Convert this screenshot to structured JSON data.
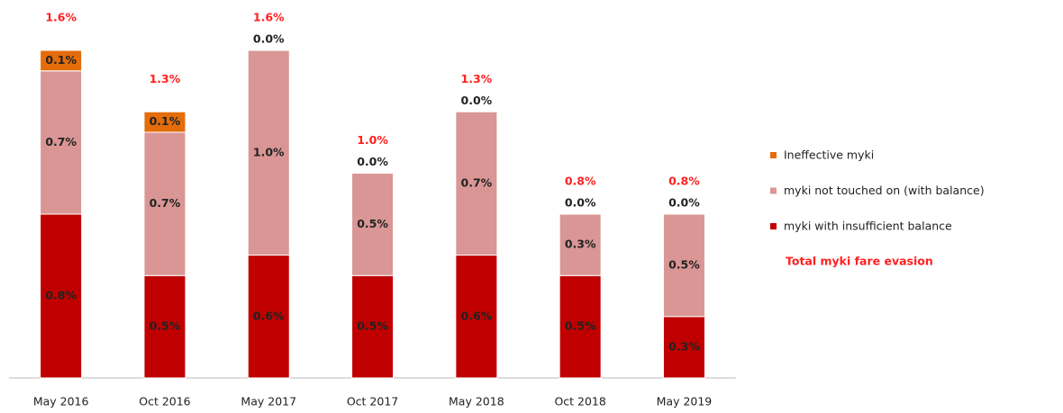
{
  "chart_data": {
    "type": "stacked_bar",
    "categories": [
      "May 2016",
      "Oct 2016",
      "May 2017",
      "Oct 2017",
      "May 2018",
      "Oct 2018",
      "May 2019"
    ],
    "series": [
      {
        "name": "Ineffective myki",
        "color": "#e46c0a",
        "values": [
          0.1,
          0.1,
          0.0,
          0.0,
          0.0,
          0.0,
          0.0
        ],
        "value_labels": [
          "0.1%",
          "0.1%",
          "0.0%",
          "0.0%",
          "0.0%",
          "0.0%",
          "0.0%"
        ]
      },
      {
        "name": "myki not touched on (with balance)",
        "color": "#d99694",
        "values": [
          0.7,
          0.7,
          1.0,
          0.5,
          0.7,
          0.3,
          0.5
        ],
        "value_labels": [
          "0.7%",
          "0.7%",
          "1.0%",
          "0.5%",
          "0.7%",
          "0.3%",
          "0.5%"
        ]
      },
      {
        "name": "myki with insufficient balance",
        "color": "#c00000",
        "values": [
          0.8,
          0.5,
          0.6,
          0.5,
          0.6,
          0.5,
          0.3
        ],
        "value_labels": [
          "0.8%",
          "0.5%",
          "0.6%",
          "0.5%",
          "0.6%",
          "0.5%",
          "0.3%"
        ]
      }
    ],
    "totals": {
      "name": "Total myki fare evasion",
      "values": [
        1.6,
        1.3,
        1.6,
        1.0,
        1.3,
        0.8,
        0.8
      ],
      "value_labels": [
        "1.6%",
        "1.3%",
        "1.6%",
        "1.0%",
        "1.3%",
        "0.8%",
        "0.8%"
      ]
    }
  }
}
